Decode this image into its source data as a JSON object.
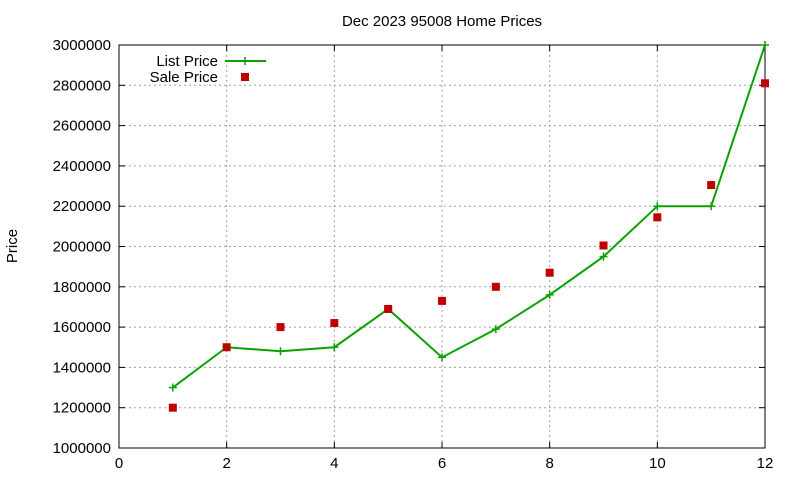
{
  "chart_data": {
    "type": "line",
    "title": "Dec 2023 95008 Home Prices",
    "xlabel": "",
    "ylabel": "Price",
    "xlim": [
      0,
      12
    ],
    "ylim": [
      1000000,
      3000000
    ],
    "xticks": [
      0,
      2,
      4,
      6,
      8,
      10,
      12
    ],
    "yticks": [
      1000000,
      1200000,
      1400000,
      1600000,
      1800000,
      2000000,
      2200000,
      2400000,
      2600000,
      2800000,
      3000000
    ],
    "x": [
      1,
      2,
      3,
      4,
      5,
      6,
      7,
      8,
      9,
      10,
      11,
      12
    ],
    "grid": true,
    "legend_position": "top-left",
    "series": [
      {
        "name": "List Price",
        "style": "line-with-plus-markers",
        "color": "#0ba100",
        "values": [
          1300000,
          1500000,
          1480000,
          1500000,
          1690000,
          1450000,
          1590000,
          1760000,
          1950000,
          2200000,
          2200000,
          3000000
        ]
      },
      {
        "name": "Sale Price",
        "style": "square-points",
        "color": "#c00000",
        "values": [
          1200000,
          1500000,
          1600000,
          1620000,
          1690000,
          1730000,
          1800000,
          1870000,
          2005000,
          2145000,
          2305000,
          2810000
        ]
      }
    ]
  }
}
